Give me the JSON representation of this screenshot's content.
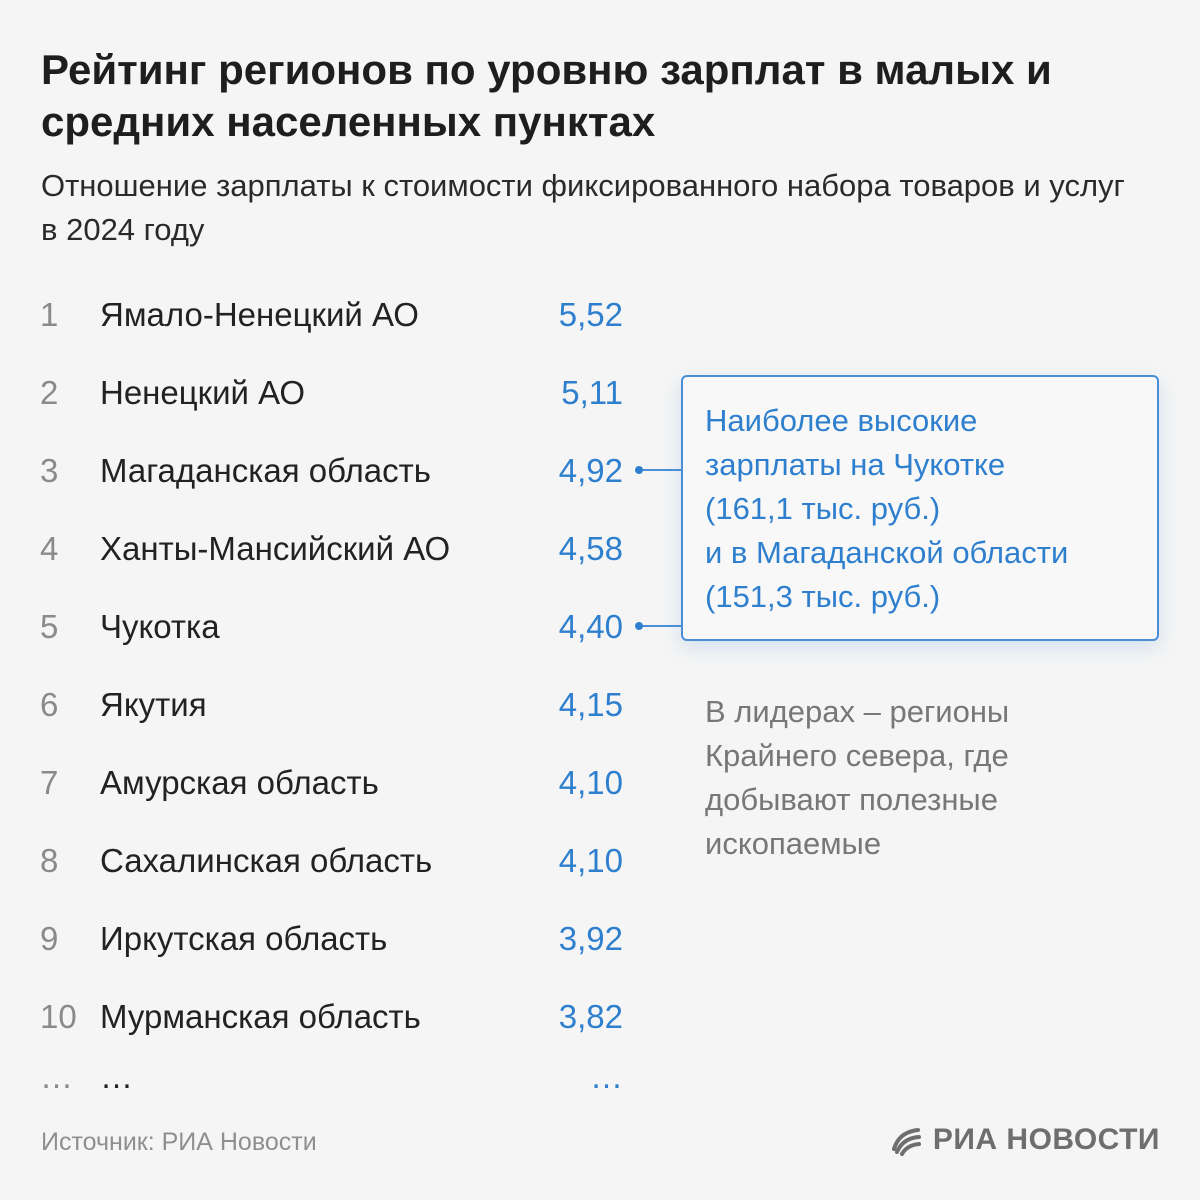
{
  "title": "Рейтинг регионов по уровню зарплат в малых и средних населенных пунктах",
  "subtitle": "Отношение зарплаты к стоимости фиксированного набора товаров и услуг в 2024 году",
  "chart_data": {
    "type": "table",
    "title": "Рейтинг регионов по уровню зарплат в малых и средних населенных пунктах",
    "subtitle": "Отношение зарплаты к стоимости фиксированного набора товаров и услуг в 2024 году",
    "rows": [
      {
        "rank": "1",
        "region": "Ямало-Ненецкий АО",
        "value": "5,52"
      },
      {
        "rank": "2",
        "region": "Ненецкий АО",
        "value": "5,11"
      },
      {
        "rank": "3",
        "region": "Магаданская область",
        "value": "4,92"
      },
      {
        "rank": "4",
        "region": "Ханты-Мансийский АО",
        "value": "4,58"
      },
      {
        "rank": "5",
        "region": "Чукотка",
        "value": "4,40"
      },
      {
        "rank": "6",
        "region": "Якутия",
        "value": "4,15"
      },
      {
        "rank": "7",
        "region": "Амурская область",
        "value": "4,10"
      },
      {
        "rank": "8",
        "region": "Сахалинская область",
        "value": "4,10"
      },
      {
        "rank": "9",
        "region": "Иркутская область",
        "value": "3,92"
      },
      {
        "rank": "10",
        "region": "Мурманская область",
        "value": "3,82"
      },
      {
        "rank": "…",
        "region": "…",
        "value": "…"
      }
    ],
    "annotations": [
      {
        "lines": [
          "Наиболее высокие",
          "зарплаты на Чукотке",
          "(161,1 тыс. руб.)",
          "и в Магаданской области",
          "(151,3 тыс. руб.)"
        ],
        "points_to": [
          "Магаданская область",
          "Чукотка"
        ]
      },
      {
        "lines": [
          "В лидерах – регионы",
          "Крайнего севера, где",
          "добывают полезные",
          "ископаемые"
        ]
      }
    ]
  },
  "callout": {
    "lines": [
      "Наиболее высокие",
      "зарплаты на Чукотке",
      "(161,1 тыс. руб.)",
      "и в Магаданской области",
      "(151,3 тыс. руб.)"
    ]
  },
  "note": {
    "lines": [
      "В лидерах – регионы",
      "Крайнего севера, где",
      "добывают полезные",
      "ископаемые"
    ]
  },
  "source": "Источник: РИА Новости",
  "logo": {
    "text": "РИА НОВОСТИ",
    "icon": "ria-logo-icon"
  },
  "colors": {
    "accent": "#2f7fcf",
    "text": "#222222",
    "muted": "#8a8a8a",
    "background": "#f5f5f5"
  }
}
